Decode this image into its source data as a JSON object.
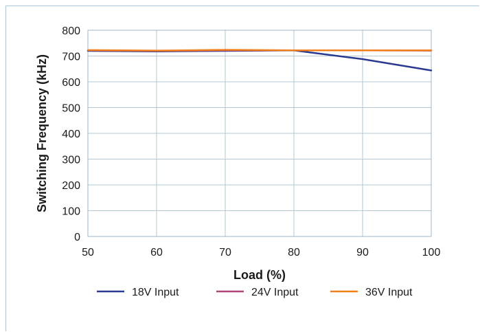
{
  "chart_data": {
    "type": "line",
    "title": "",
    "xlabel": "Load (%)",
    "ylabel": "Switching Frequency (kHz)",
    "xlim": [
      50,
      100
    ],
    "ylim": [
      0,
      800
    ],
    "xticks": [
      50,
      60,
      70,
      80,
      90,
      100
    ],
    "yticks": [
      0,
      100,
      200,
      300,
      400,
      500,
      600,
      700,
      800
    ],
    "grid": true,
    "legend_position": "bottom",
    "series": [
      {
        "name": "18V Input",
        "color": "#2a3a8f",
        "x": [
          50,
          60,
          70,
          80,
          90,
          100
        ],
        "y": [
          720,
          718,
          720,
          722,
          688,
          644
        ]
      },
      {
        "name": "24V Input",
        "color": "#b0457a",
        "x": [
          50,
          60,
          70,
          80,
          90,
          100
        ],
        "y": [
          722,
          720,
          722,
          722,
          722,
          721
        ]
      },
      {
        "name": "36V Input",
        "color": "#f07f1c",
        "x": [
          50,
          60,
          70,
          80,
          90,
          100
        ],
        "y": [
          723,
          721,
          724,
          722,
          722,
          722
        ]
      }
    ]
  }
}
